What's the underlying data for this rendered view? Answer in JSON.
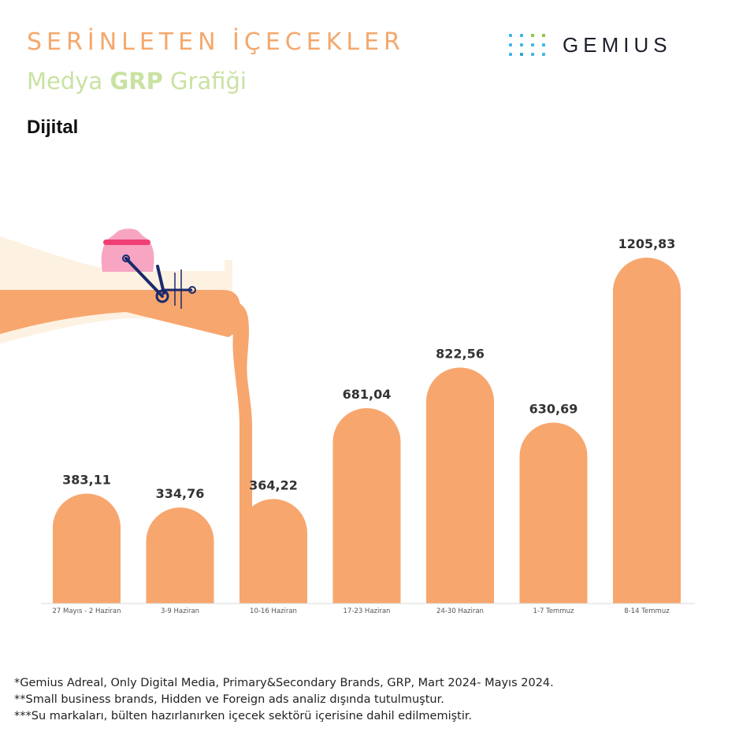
{
  "header": {
    "title_line1": "SERİNLETEN İÇECEKLER",
    "title_line2_pre": "Medya ",
    "title_line2_bold": "GRP",
    "title_line2_post": " Grafiği",
    "subtitle": "Dijital"
  },
  "logo": {
    "name": "GEMIUS",
    "icon": "gemius-dots-icon"
  },
  "colors": {
    "bar": "#f7a66e",
    "bottle": "#fdf1e1",
    "title_orange": "#f4a86c",
    "title_green": "#c9e2a2",
    "bag": "#f7a5c2",
    "bag_band": "#ef3f74",
    "handle": "#1a2a6c"
  },
  "chart_data": {
    "type": "bar",
    "categories": [
      "27 Mayıs - 2 Haziran",
      "3-9 Haziran",
      "10-16 Haziran",
      "17-23 Haziran",
      "24-30 Haziran",
      "1-7 Temmuz",
      "8-14 Temmuz"
    ],
    "values": [
      383.11,
      334.76,
      364.22,
      681.04,
      822.56,
      630.69,
      1205.83
    ],
    "value_labels": [
      "383,11",
      "334,76",
      "364,22",
      "681,04",
      "822,56",
      "630,69",
      "1205,83"
    ],
    "ylim": [
      0,
      1260
    ],
    "grid": false,
    "title": "",
    "xlabel": "",
    "ylabel": ""
  },
  "footnotes": [
    "*Gemius Adreal, Only Digital Media, Primary&Secondary Brands, GRP, Mart 2024- Mayıs 2024.",
    "**Small business brands, Hidden ve Foreign ads analiz dışında tutulmuştur.",
    "***Su markaları, bülten hazırlanırken içecek sektörü içerisine dahil edilmemiştir."
  ]
}
